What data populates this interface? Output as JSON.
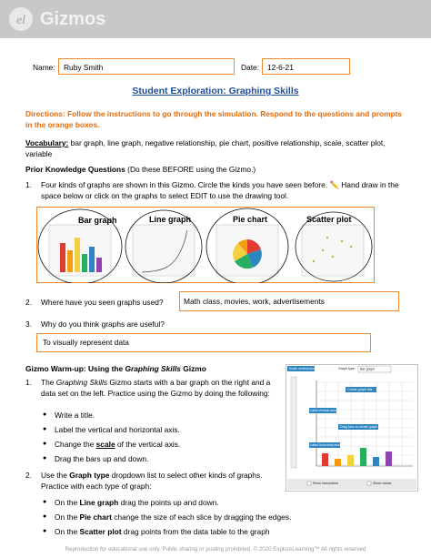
{
  "header": {
    "logo": "Gizmos"
  },
  "form": {
    "name_label": "Name:",
    "name_value": "Ruby Smith",
    "date_label": "Date:",
    "date_value": "12-6-21"
  },
  "title": "Student Exploration: Graphing Skills",
  "directions": "Directions: Follow the instructions to go through the simulation. Respond to the questions and prompts in the orange boxes.",
  "vocabulary": {
    "label": "Vocabulary:",
    "text": "bar graph, line graph, negative relationship, pie chart, positive relationship, scale, scatter plot, variable"
  },
  "prior": {
    "heading": "Prior Knowledge Questions",
    "note": "(Do these BEFORE using the Gizmo.)",
    "questions": [
      {
        "number": "1.",
        "text": "Four kinds of graphs are shown in this Gizmo. Circle the kinds you have seen before. ✏️ Hand draw in the space below or click on the graphs to select EDIT to use the drawing tool.",
        "graphs": [
          "Bar graph",
          "Line graph",
          "Pie chart",
          "Scatter plot"
        ]
      },
      {
        "number": "2.",
        "text": "Where have you seen graphs used?",
        "answer": "Math class, movies, work, advertisements"
      },
      {
        "number": "3.",
        "text": "Why do you think graphs are useful?",
        "answer": "To visually represent data"
      }
    ]
  },
  "warmup": {
    "heading": [
      "Gizmo Warm-up: Using the",
      "Graphing Skills",
      "Gizmo"
    ],
    "items": [
      {
        "number": "1.",
        "text": [
          "The",
          "Graphing Skills",
          "Gizmo starts with a bar graph on the right and a data set on the left. Practice using the Gizmo by doing the following:"
        ],
        "bullets": [
          [
            "Write a title."
          ],
          [
            "Label the vertical and horizontal axis."
          ],
          [
            "Change the",
            "scale",
            "of the vertical axis."
          ],
          [
            "Drag the bars up and down."
          ]
        ]
      },
      {
        "number": "2.",
        "text": [
          "Use the",
          "Graph type",
          "dropdown list to select other kinds of graphs. Practice with each type of graph:"
        ],
        "bullets": [
          [
            "On the",
            "Line graph",
            "drag the points up and down."
          ],
          [
            "On the",
            "Pie chart",
            "change the size of each slice by dragging the edges."
          ],
          [
            "On the",
            "Scatter plot",
            "drag points from the data table to the graph"
          ]
        ]
      }
    ]
  },
  "gizmo": {
    "scale_label": "Scale vertical axis",
    "graph_type_label": "Graph type:",
    "graph_type_value": "Bar graph",
    "title_prompt": "Create graph title",
    "vlabel": "Label vertical axis",
    "drag": "Drag bars to create graph",
    "hlabel": "Label horizontal axis",
    "show_instructions": "Show instructions",
    "show_values": "Show values"
  },
  "footer": "Reproduction for educational use only. Public sharing or posting prohibited. © 2020 ExploreLearning™ All rights reserved"
}
